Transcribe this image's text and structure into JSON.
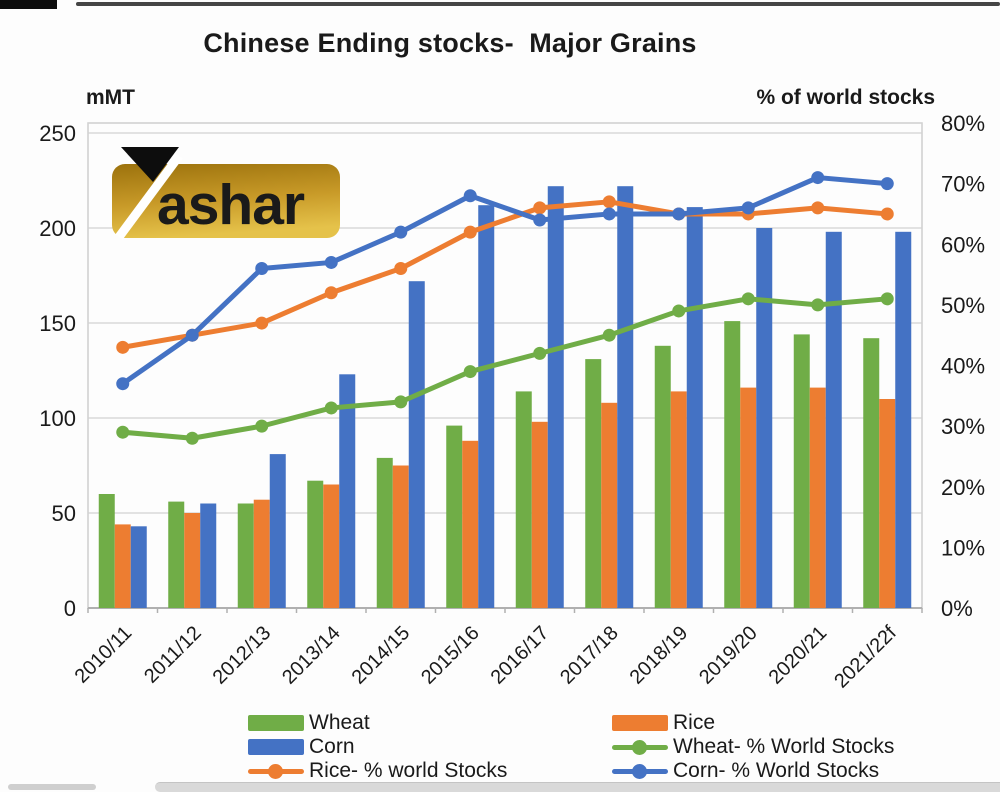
{
  "page": {
    "title": "Chinese Ending stocks-  Major Grains",
    "left_axis_unit": "mMT",
    "right_axis_unit": "% of world stocks"
  },
  "logo": {
    "brand": "Yashar",
    "text_part": "ashar",
    "gold_dark": "#9c720d",
    "gold_mid": "#c89a28",
    "gold_light": "#e5c24a"
  },
  "colors": {
    "wheat": "#70ad47",
    "rice": "#ed7d31",
    "corn": "#4472c4",
    "gridline": "#d9d9d9",
    "plot_border": "#d2d2d2",
    "axis_line": "#b0b0b0",
    "text": "#1a1a1a"
  },
  "chart_data": {
    "type": "bar",
    "subtype": "clustered-bars-with-lines-dual-axis",
    "title": "Chinese Ending stocks-  Major Grains",
    "categories": [
      "2010/11",
      "2011/12",
      "2012/13",
      "2013/14",
      "2014/15",
      "2015/16",
      "2016/17",
      "2017/18",
      "2018/19",
      "2019/20",
      "2020/21",
      "2021/22f"
    ],
    "bar_series": [
      {
        "name": "Wheat",
        "axis": "left",
        "color": "#70ad47",
        "values": [
          60,
          56,
          55,
          67,
          79,
          96,
          114,
          131,
          138,
          151,
          144,
          142
        ]
      },
      {
        "name": "Rice",
        "axis": "left",
        "color": "#ed7d31",
        "values": [
          44,
          50,
          57,
          65,
          75,
          88,
          98,
          108,
          114,
          116,
          116,
          110
        ]
      },
      {
        "name": "Corn",
        "axis": "left",
        "color": "#4472c4",
        "values": [
          43,
          55,
          81,
          123,
          172,
          212,
          222,
          222,
          211,
          200,
          198,
          198
        ]
      }
    ],
    "line_series": [
      {
        "name": "Wheat- % World Stocks",
        "axis": "right",
        "color": "#70ad47",
        "values": [
          29,
          28,
          30,
          33,
          34,
          39,
          42,
          45,
          49,
          51,
          50,
          51
        ]
      },
      {
        "name": "Rice- % world Stocks",
        "axis": "right",
        "color": "#ed7d31",
        "values": [
          43,
          45,
          47,
          52,
          56,
          62,
          66,
          67,
          65,
          65,
          66,
          65
        ]
      },
      {
        "name": "Corn- % World Stocks",
        "axis": "right",
        "color": "#4472c4",
        "values": [
          37,
          45,
          56,
          57,
          62,
          68,
          64,
          65,
          65,
          66,
          71,
          70
        ]
      }
    ],
    "left_axis": {
      "label": "mMT",
      "min": 0,
      "max": 250,
      "step": 50,
      "tick_labels": [
        "0",
        "50",
        "100",
        "150",
        "200",
        "250"
      ]
    },
    "right_axis": {
      "label": "% of world stocks",
      "min": 0,
      "max": 80,
      "step": 10,
      "tick_labels": [
        "0%",
        "10%",
        "20%",
        "30%",
        "40%",
        "50%",
        "60%",
        "70%",
        "80%"
      ]
    },
    "grid": true,
    "legend_position": "bottom"
  },
  "legend": {
    "items": [
      {
        "label": "Wheat",
        "swatch": "bar",
        "color": "#70ad47"
      },
      {
        "label": "Rice",
        "swatch": "bar",
        "color": "#ed7d31"
      },
      {
        "label": "Corn",
        "swatch": "bar",
        "color": "#4472c4"
      },
      {
        "label": "Wheat- % World Stocks",
        "swatch": "line",
        "color": "#70ad47"
      },
      {
        "label": "Rice- % world Stocks",
        "swatch": "line",
        "color": "#ed7d31"
      },
      {
        "label": "Corn- % World Stocks",
        "swatch": "line",
        "color": "#4472c4"
      }
    ]
  }
}
